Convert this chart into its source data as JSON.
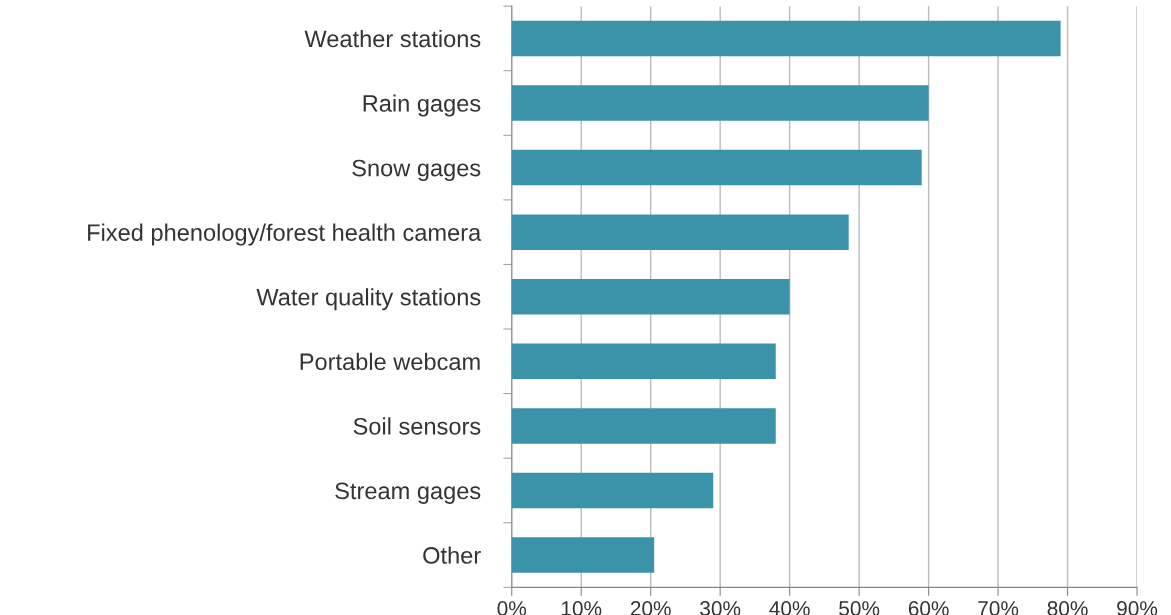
{
  "chart_data": {
    "type": "bar",
    "orientation": "horizontal",
    "categories": [
      "Weather stations",
      "Rain gages",
      "Snow gages",
      "Fixed phenology/forest health camera",
      "Water quality stations",
      "Portable webcam",
      "Soil sensors",
      "Stream gages",
      "Other"
    ],
    "values": [
      79,
      60,
      59,
      48.5,
      40,
      38,
      38,
      29,
      20.5
    ],
    "color": "#3a93a8",
    "xlim": [
      0,
      90
    ],
    "xticks": [
      {
        "value": 0,
        "label": "0%"
      },
      {
        "value": 10,
        "label": "10%"
      },
      {
        "value": 20,
        "label": "20%"
      },
      {
        "value": 30,
        "label": "30%"
      },
      {
        "value": 40,
        "label": "40%"
      },
      {
        "value": 50,
        "label": "50%"
      },
      {
        "value": 60,
        "label": "60%"
      },
      {
        "value": 70,
        "label": "70%"
      },
      {
        "value": 80,
        "label": "80%"
      },
      {
        "value": 90,
        "label": "90%"
      }
    ],
    "grid": "x",
    "legend": false
  }
}
